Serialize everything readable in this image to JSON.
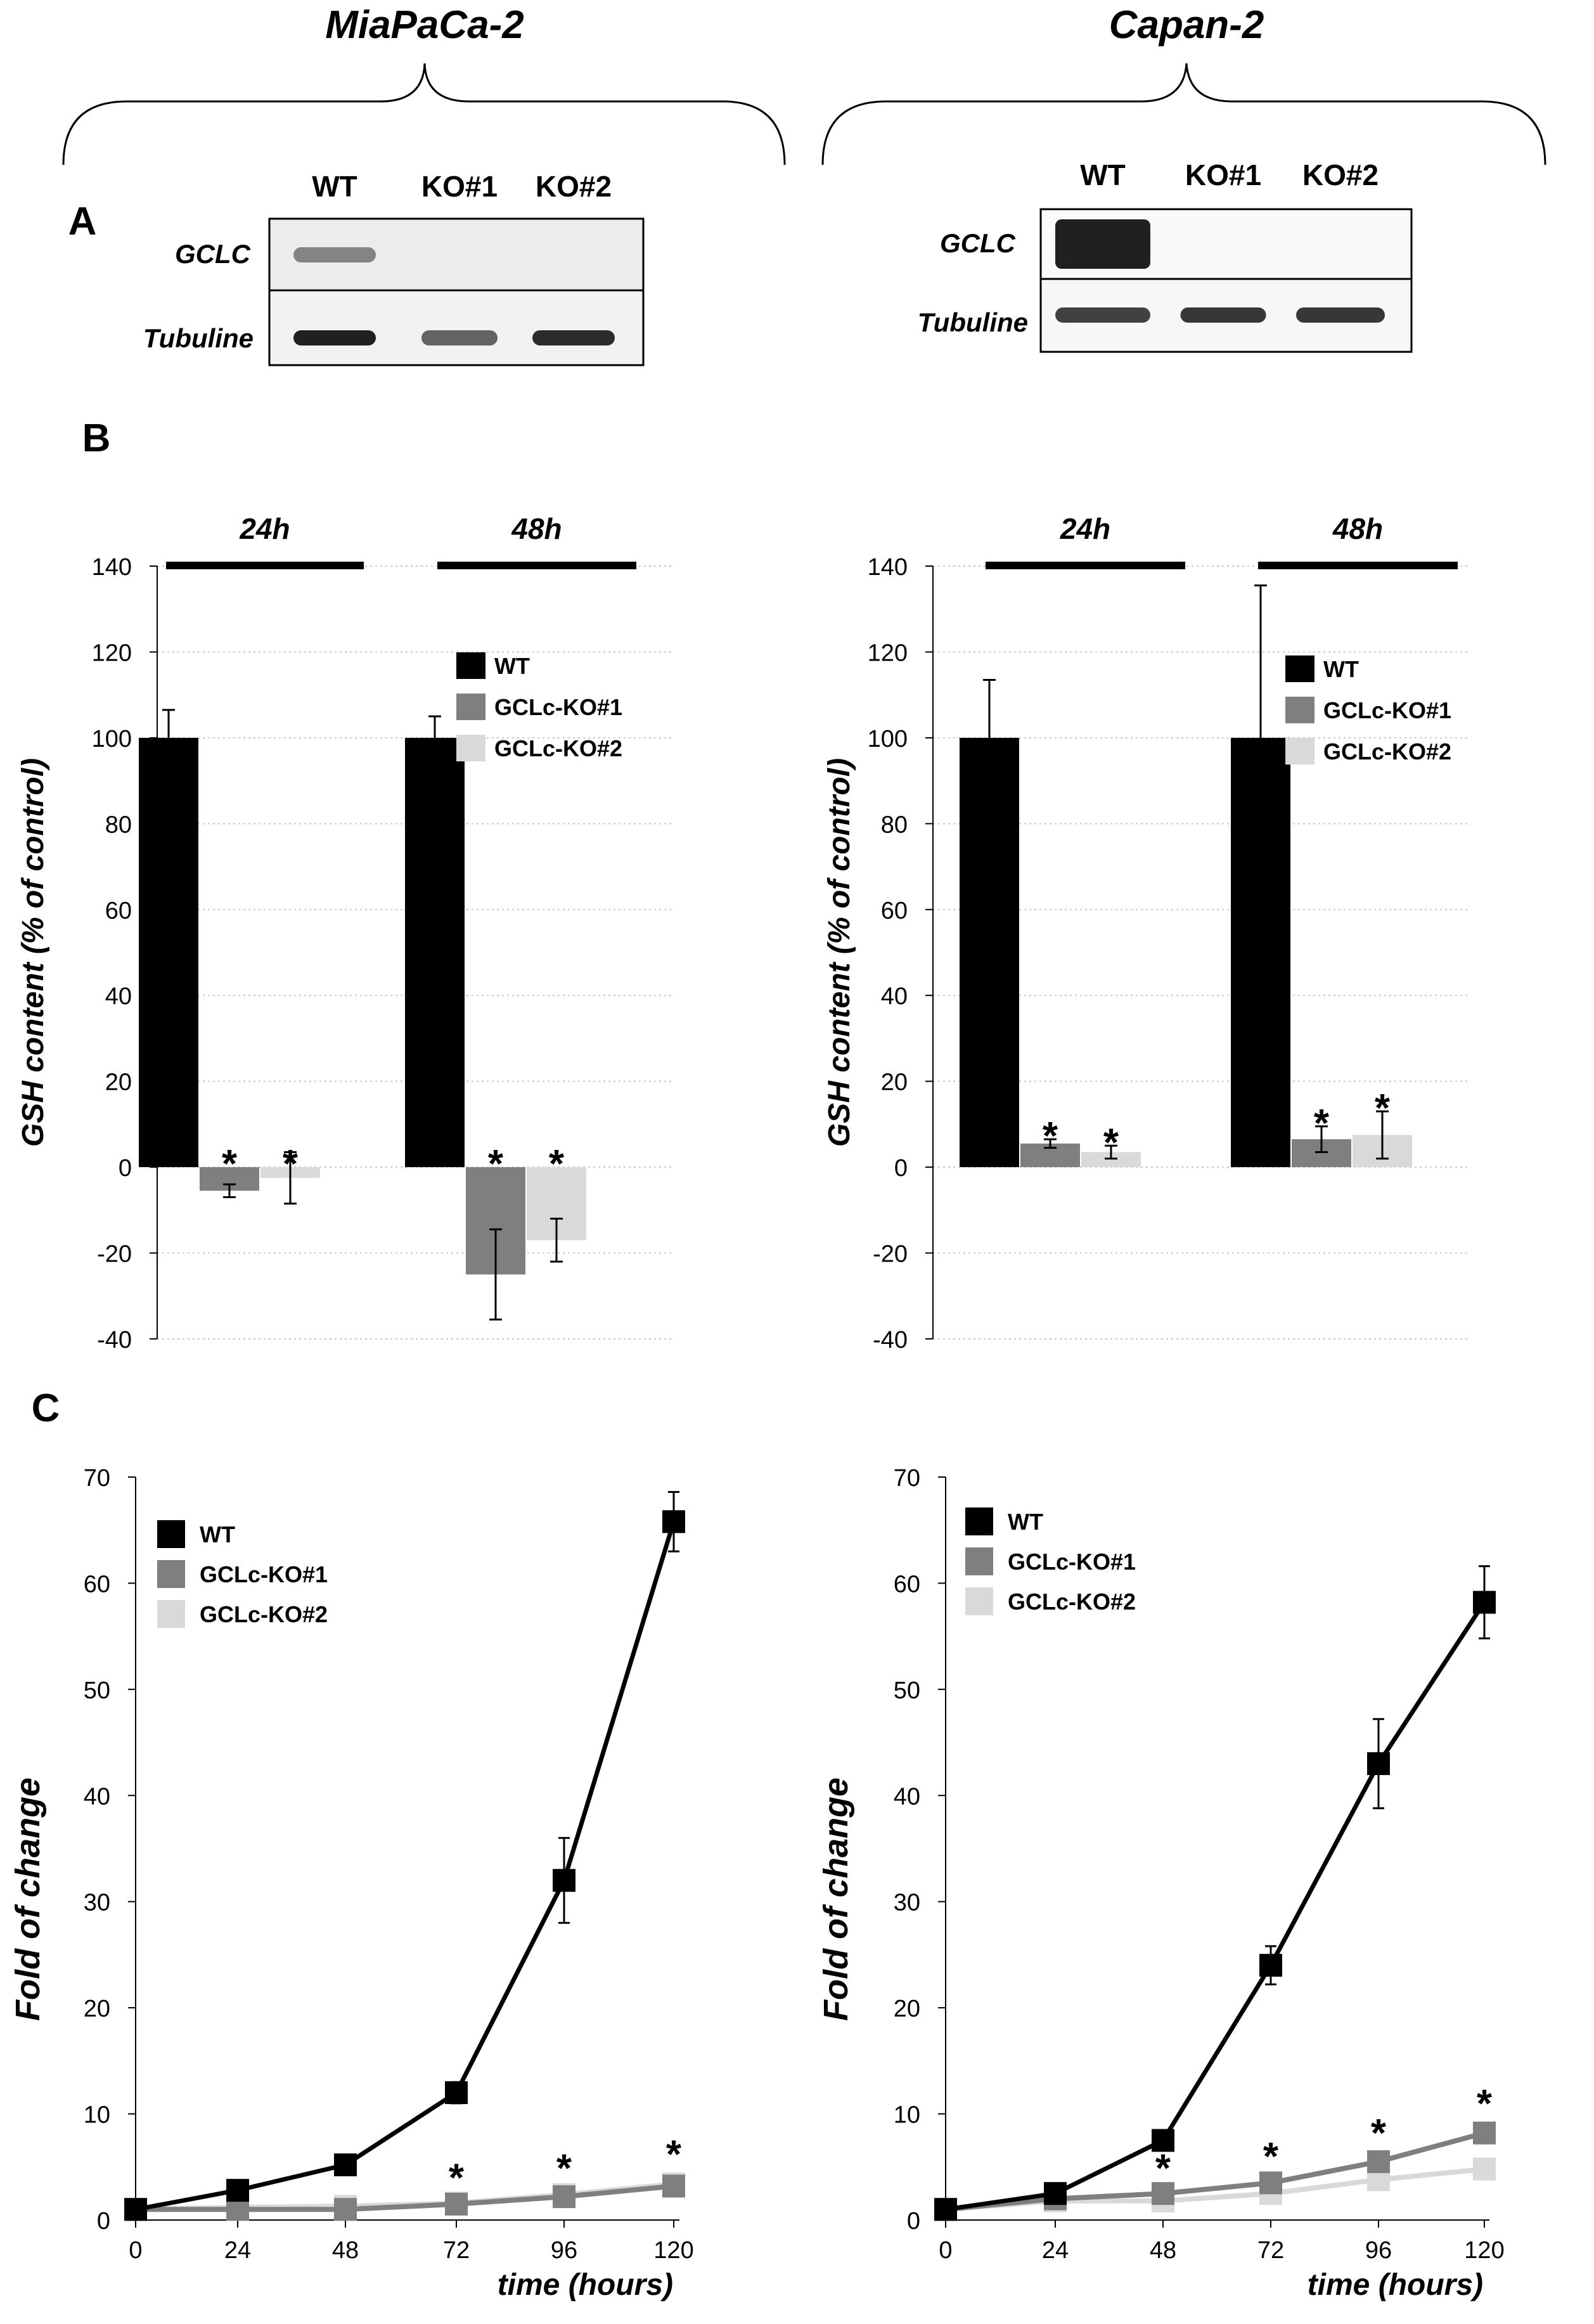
{
  "figure": {
    "cell_lines": [
      "MiaPaCa-2",
      "Capan-2"
    ],
    "panel_labels": [
      "A",
      "B",
      "C"
    ]
  },
  "blots": [
    {
      "lanes": [
        "WT",
        "KO#1",
        "KO#2"
      ],
      "rows": [
        "GCLC",
        "Tubuline"
      ],
      "band_intensity": {
        "GCLC": [
          0.55,
          0.0,
          0.0
        ],
        "Tubuline": [
          1.0,
          0.7,
          0.95
        ]
      }
    },
    {
      "lanes": [
        "WT",
        "KO#1",
        "KO#2"
      ],
      "rows": [
        "GCLC",
        "Tubuline"
      ],
      "band_intensity": {
        "GCLC": [
          1.0,
          0.0,
          0.0
        ],
        "Tubuline": [
          0.85,
          0.9,
          0.9
        ]
      }
    }
  ],
  "chart_data": [
    {
      "type": "bar",
      "ylabel": "GSH content (% of control)",
      "ylim": [
        -40,
        140
      ],
      "yticks": [
        140,
        120,
        100,
        80,
        60,
        40,
        20,
        0,
        -20,
        -40
      ],
      "grid": true,
      "legend": "right",
      "groups": [
        "24h",
        "48h"
      ],
      "series": [
        {
          "name": "WT",
          "color": "#000000",
          "values": [
            100,
            100
          ],
          "errors": [
            6.5,
            5
          ]
        },
        {
          "name": "GCLc-KO#1",
          "color": "#7f7f7f",
          "values": [
            -5.5,
            -25
          ],
          "errors": [
            1.5,
            10.5
          ]
        },
        {
          "name": "GCLc-KO#2",
          "color": "#d9d9d9",
          "values": [
            -2.5,
            -17
          ],
          "errors": [
            6,
            5
          ]
        }
      ],
      "significance": [
        [
          "",
          "*",
          "*"
        ],
        [
          "",
          "*",
          "*"
        ]
      ]
    },
    {
      "type": "bar",
      "ylabel": "GSH content (% of control)",
      "ylim": [
        -40,
        140
      ],
      "yticks": [
        140,
        120,
        100,
        80,
        60,
        40,
        20,
        0,
        -20,
        -40
      ],
      "grid": true,
      "legend": "right",
      "groups": [
        "24h",
        "48h"
      ],
      "series": [
        {
          "name": "WT",
          "color": "#000000",
          "values": [
            100,
            100
          ],
          "errors": [
            13.5,
            35.5
          ]
        },
        {
          "name": "GCLc-KO#1",
          "color": "#7f7f7f",
          "values": [
            5.5,
            6.5
          ],
          "errors": [
            1,
            3
          ]
        },
        {
          "name": "GCLc-KO#2",
          "color": "#d9d9d9",
          "values": [
            3.5,
            7.5
          ],
          "errors": [
            1.5,
            5.5
          ]
        }
      ],
      "significance": [
        [
          "",
          "*",
          "*"
        ],
        [
          "",
          "*",
          "*"
        ]
      ]
    },
    {
      "type": "line",
      "xlabel": "time (hours)",
      "ylabel": "Fold of change",
      "x": [
        0,
        24,
        48,
        72,
        96,
        120
      ],
      "xticks": [
        "0",
        "24",
        "48",
        "72",
        "96",
        "120"
      ],
      "ylim": [
        0,
        70
      ],
      "yticks": [
        70,
        60,
        50,
        40,
        30,
        20,
        10,
        0
      ],
      "legend": "top-left",
      "series": [
        {
          "name": "WT",
          "color": "#000000",
          "values": [
            1,
            2.8,
            5.2,
            12,
            32,
            65.8
          ],
          "errors": [
            0.2,
            0.4,
            0.6,
            1,
            4,
            2.8
          ]
        },
        {
          "name": "GCLc-KO#1",
          "color": "#7f7f7f",
          "values": [
            1,
            1,
            1,
            1.5,
            2.2,
            3.2
          ],
          "errors": [
            0.2,
            0.2,
            0.3,
            0.4,
            0.5,
            0.8
          ]
        },
        {
          "name": "GCLc-KO#2",
          "color": "#d9d9d9",
          "values": [
            1,
            1.2,
            1.3,
            1.6,
            2.4,
            3.4
          ],
          "errors": [
            0.2,
            0.2,
            0.3,
            0.4,
            0.5,
            0.8
          ]
        }
      ],
      "significance": [
        "",
        "",
        "",
        "*",
        "*",
        "*"
      ]
    },
    {
      "type": "line",
      "xlabel": "time (hours)",
      "ylabel": "Fold of change",
      "x": [
        0,
        24,
        48,
        72,
        96,
        120
      ],
      "xticks": [
        "0",
        "24",
        "48",
        "72",
        "96",
        "120"
      ],
      "ylim": [
        0,
        70
      ],
      "yticks": [
        70,
        60,
        50,
        40,
        30,
        20,
        10,
        0
      ],
      "legend": "top-left",
      "series": [
        {
          "name": "WT",
          "color": "#000000",
          "values": [
            1,
            2.5,
            7.5,
            24,
            43,
            58.2
          ],
          "errors": [
            0.2,
            0.4,
            0.8,
            1.8,
            4.2,
            3.4
          ]
        },
        {
          "name": "GCLc-KO#1",
          "color": "#7f7f7f",
          "values": [
            1,
            2,
            2.5,
            3.5,
            5.5,
            8.2
          ],
          "errors": [
            0.2,
            0.3,
            0.4,
            0.5,
            0.7,
            0.8
          ]
        },
        {
          "name": "GCLc-KO#2",
          "color": "#d9d9d9",
          "values": [
            1,
            1.8,
            1.8,
            2.5,
            3.8,
            4.8
          ],
          "errors": [
            0.2,
            0.3,
            0.3,
            0.4,
            0.6,
            0.7
          ]
        }
      ],
      "significance": [
        "",
        "",
        "*",
        "*",
        "*",
        "*"
      ]
    }
  ]
}
